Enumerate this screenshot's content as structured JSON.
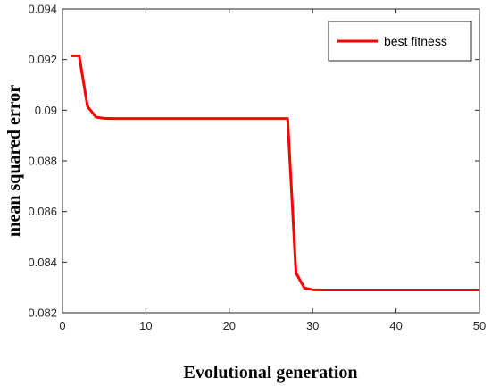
{
  "chart_data": {
    "type": "line",
    "xlabel": "Evolutional generation",
    "ylabel": "mean squared error",
    "xlim": [
      0,
      50
    ],
    "ylim": [
      0.082,
      0.094
    ],
    "x_ticks": [
      0,
      10,
      20,
      30,
      40,
      50
    ],
    "x_tick_labels": [
      "0",
      "10",
      "20",
      "30",
      "40",
      "50"
    ],
    "y_ticks": [
      0.082,
      0.084,
      0.086,
      0.088,
      0.09,
      0.092,
      0.094
    ],
    "y_tick_labels": [
      "0.082",
      "0.084",
      "0.086",
      "0.088",
      "0.09",
      "0.092",
      "0.094"
    ],
    "grid": false,
    "legend_position": "top-right",
    "series": [
      {
        "name": "best fitness",
        "color": "#ff0000",
        "x": [
          1,
          2,
          3,
          4,
          5,
          6,
          7,
          8,
          9,
          10,
          11,
          12,
          13,
          14,
          15,
          16,
          17,
          18,
          19,
          20,
          21,
          22,
          23,
          24,
          25,
          26,
          27,
          28,
          29,
          30,
          31,
          32,
          33,
          34,
          35,
          36,
          37,
          38,
          39,
          40,
          41,
          42,
          43,
          44,
          45,
          46,
          47,
          48,
          49,
          50
        ],
        "values": [
          0.09215,
          0.09215,
          0.09015,
          0.08973,
          0.08968,
          0.08967,
          0.08967,
          0.08967,
          0.08967,
          0.08967,
          0.08967,
          0.08967,
          0.08967,
          0.08967,
          0.08967,
          0.08967,
          0.08967,
          0.08967,
          0.08967,
          0.08967,
          0.08967,
          0.08967,
          0.08967,
          0.08967,
          0.08967,
          0.08967,
          0.08967,
          0.08358,
          0.08298,
          0.08291,
          0.0829,
          0.0829,
          0.0829,
          0.0829,
          0.0829,
          0.0829,
          0.0829,
          0.0829,
          0.0829,
          0.0829,
          0.0829,
          0.0829,
          0.0829,
          0.0829,
          0.0829,
          0.0829,
          0.0829,
          0.0829,
          0.0829,
          0.0829
        ]
      }
    ]
  }
}
